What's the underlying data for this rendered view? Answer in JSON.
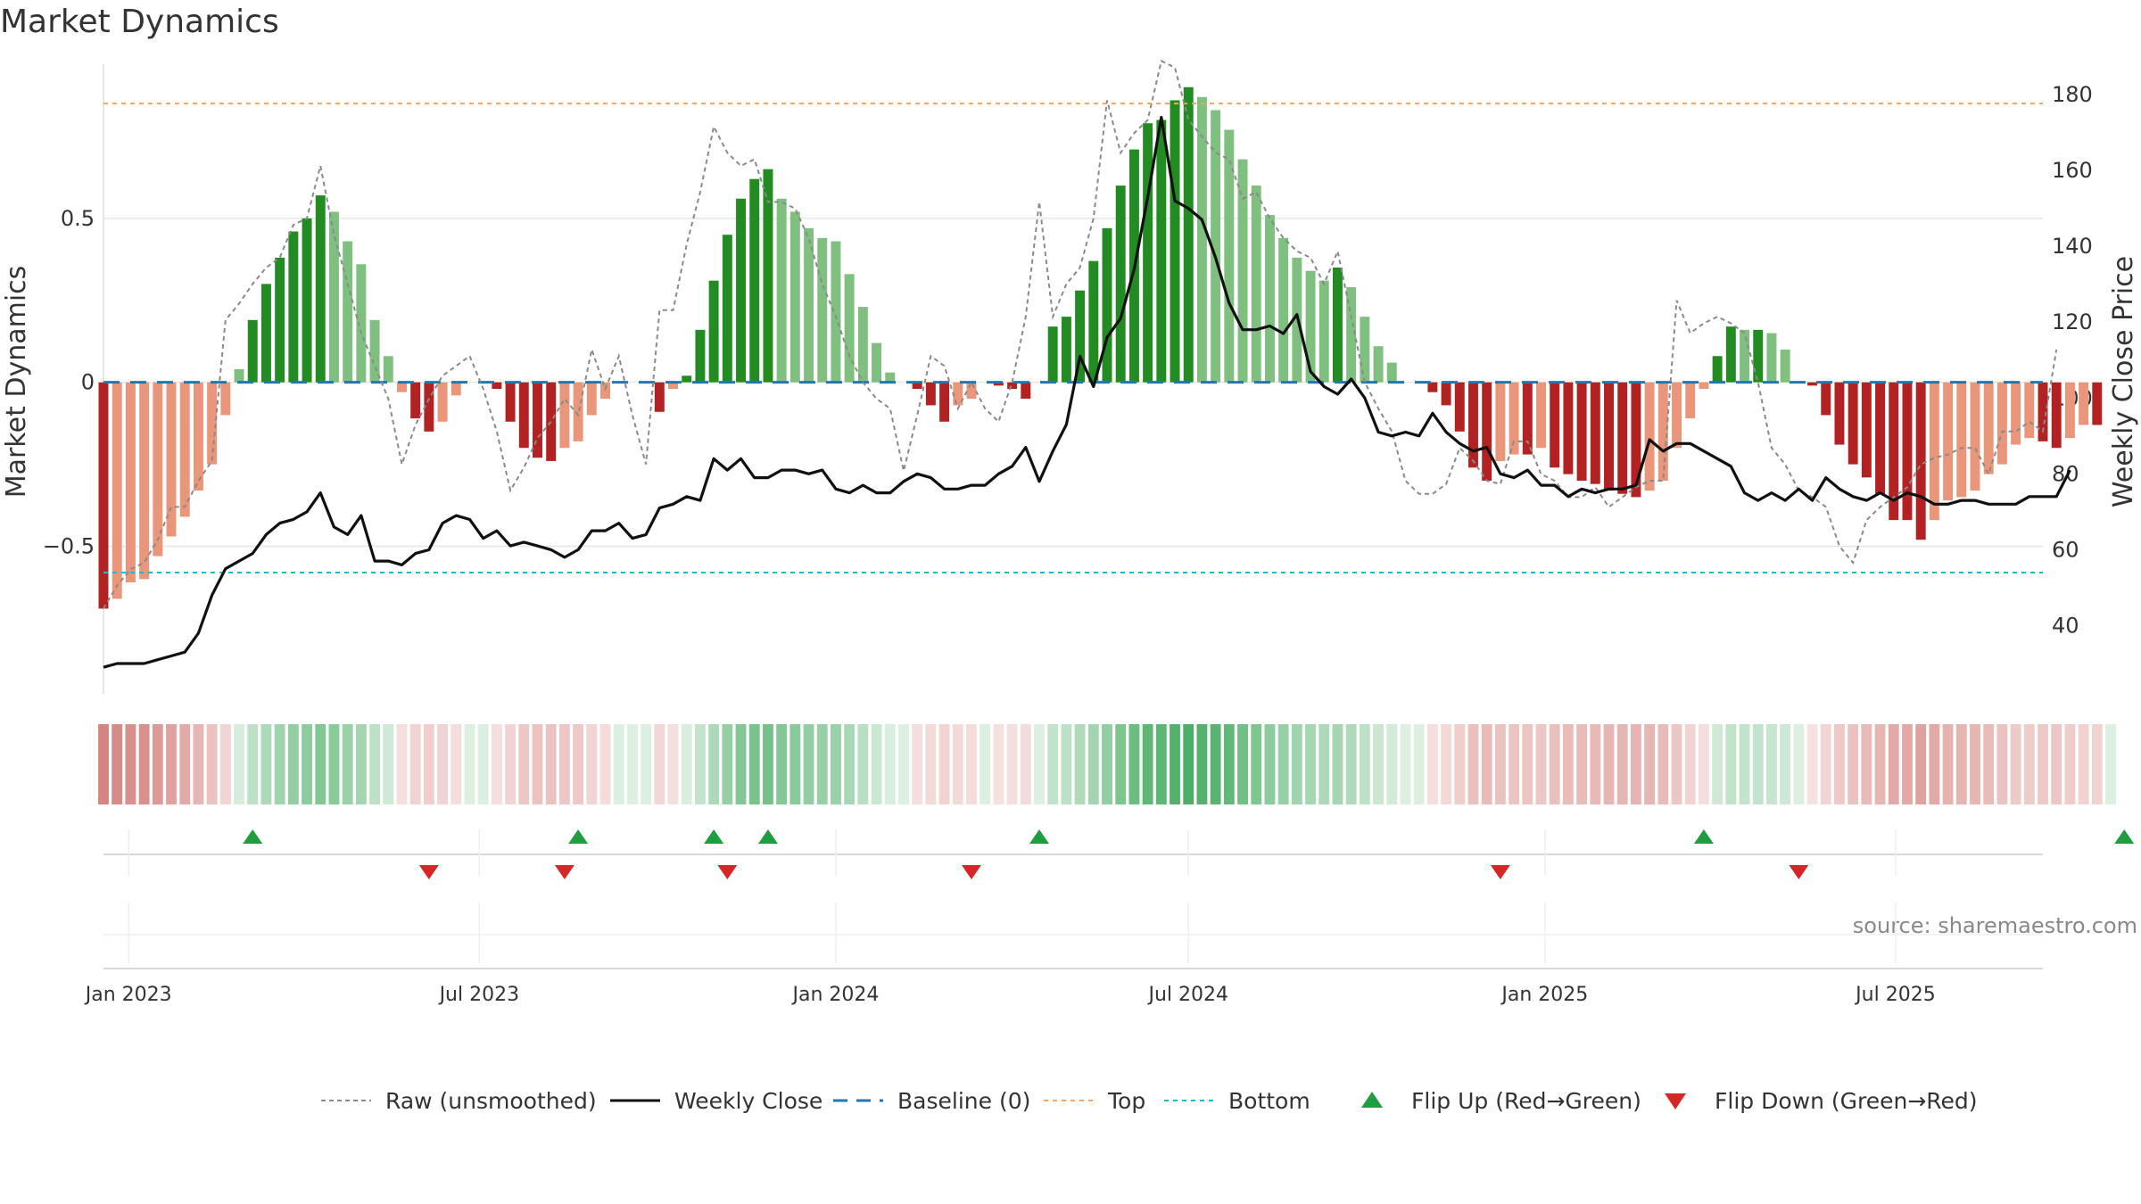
{
  "chart_data": {
    "type": "bar",
    "title": "Market Dynamics",
    "ylabel_left": "Market Dynamics",
    "ylabel_right": "Weekly Close Price",
    "left_ylim": [
      -0.95,
      0.97
    ],
    "right_ylim": [
      22,
      188
    ],
    "left_ticks": [
      {
        "value": 0.5,
        "label": "0.5"
      },
      {
        "value": 0,
        "label": "0"
      },
      {
        "value": -0.5,
        "label": "−0.5"
      }
    ],
    "right_ticks": [
      {
        "value": 180,
        "label": "180"
      },
      {
        "value": 160,
        "label": "160"
      },
      {
        "value": 140,
        "label": "140"
      },
      {
        "value": 120,
        "label": "120"
      },
      {
        "value": 100,
        "label": "100"
      },
      {
        "value": 80,
        "label": "80"
      },
      {
        "value": 60,
        "label": "60"
      },
      {
        "value": 40,
        "label": "40"
      }
    ],
    "x_range": [
      "2022-12-19",
      "2025-09-15"
    ],
    "x_ticks": [
      {
        "date": "2023-01-01",
        "label": "Jan 2023"
      },
      {
        "date": "2023-07-01",
        "label": "Jul 2023"
      },
      {
        "date": "2024-01-01",
        "label": "Jan 2024"
      },
      {
        "date": "2024-07-01",
        "label": "Jul 2024"
      },
      {
        "date": "2025-01-01",
        "label": "Jan 2025"
      },
      {
        "date": "2025-07-01",
        "label": "Jul 2025"
      }
    ],
    "first_week": "2022-12-19",
    "week_step_days": 7,
    "top_level": 0.85,
    "bottom_level": -0.58,
    "baseline_level": 0,
    "momentum": [
      -0.69,
      -0.66,
      -0.61,
      -0.6,
      -0.53,
      -0.47,
      -0.41,
      -0.33,
      -0.25,
      -0.1,
      0.04,
      0.19,
      0.3,
      0.38,
      0.46,
      0.5,
      0.57,
      0.52,
      0.43,
      0.36,
      0.19,
      0.08,
      -0.03,
      -0.11,
      -0.15,
      -0.12,
      -0.04,
      0.0,
      0.0,
      -0.02,
      -0.12,
      -0.2,
      -0.23,
      -0.24,
      -0.2,
      -0.18,
      -0.1,
      -0.05,
      0.0,
      0.0,
      0.0,
      -0.09,
      -0.02,
      0.02,
      0.16,
      0.31,
      0.45,
      0.56,
      0.62,
      0.65,
      0.56,
      0.52,
      0.47,
      0.44,
      0.43,
      0.33,
      0.23,
      0.12,
      0.03,
      0.0,
      -0.02,
      -0.07,
      -0.12,
      -0.07,
      -0.05,
      0.0,
      -0.01,
      -0.02,
      -0.05,
      0.0,
      0.17,
      0.2,
      0.28,
      0.37,
      0.47,
      0.6,
      0.71,
      0.79,
      0.8,
      0.86,
      0.9,
      0.87,
      0.83,
      0.77,
      0.68,
      0.6,
      0.51,
      0.44,
      0.38,
      0.34,
      0.31,
      0.35,
      0.29,
      0.2,
      0.11,
      0.06,
      0.0,
      0.0,
      -0.03,
      -0.07,
      -0.15,
      -0.26,
      -0.3,
      -0.24,
      -0.22,
      -0.22,
      -0.2,
      -0.26,
      -0.28,
      -0.3,
      -0.31,
      -0.33,
      -0.34,
      -0.35,
      -0.33,
      -0.3,
      -0.2,
      -0.11,
      -0.02,
      0.08,
      0.17,
      0.16,
      0.16,
      0.15,
      0.1,
      0.0,
      -0.01,
      -0.1,
      -0.19,
      -0.25,
      -0.29,
      -0.34,
      -0.42,
      -0.42,
      -0.48,
      -0.42,
      -0.36,
      -0.35,
      -0.33,
      -0.28,
      -0.25,
      -0.19,
      -0.17,
      -0.18,
      -0.2,
      -0.17,
      -0.13,
      -0.13,
      0.0
    ],
    "raw": [
      -0.69,
      -0.62,
      -0.57,
      -0.55,
      -0.48,
      -0.38,
      -0.38,
      -0.3,
      -0.24,
      0.19,
      0.24,
      0.3,
      0.35,
      0.38,
      0.48,
      0.5,
      0.66,
      0.45,
      0.3,
      0.15,
      0.05,
      -0.05,
      -0.25,
      -0.13,
      -0.05,
      0.02,
      0.05,
      0.08,
      -0.02,
      -0.15,
      -0.33,
      -0.26,
      -0.17,
      -0.12,
      -0.05,
      -0.1,
      0.1,
      -0.02,
      0.08,
      -0.1,
      -0.25,
      0.22,
      0.22,
      0.42,
      0.58,
      0.78,
      0.7,
      0.66,
      0.68,
      0.55,
      0.55,
      0.53,
      0.44,
      0.3,
      0.2,
      0.08,
      0.0,
      -0.05,
      -0.08,
      -0.27,
      -0.1,
      0.08,
      0.05,
      -0.08,
      0.0,
      -0.08,
      -0.12,
      0.0,
      0.2,
      0.55,
      0.2,
      0.3,
      0.35,
      0.5,
      0.86,
      0.7,
      0.76,
      0.8,
      0.98,
      0.96,
      0.8,
      0.75,
      0.7,
      0.68,
      0.56,
      0.58,
      0.5,
      0.44,
      0.4,
      0.38,
      0.3,
      0.4,
      0.2,
      0.0,
      -0.08,
      -0.15,
      -0.3,
      -0.34,
      -0.34,
      -0.31,
      -0.2,
      -0.24,
      -0.3,
      -0.31,
      -0.18,
      -0.18,
      -0.28,
      -0.3,
      -0.35,
      -0.35,
      -0.32,
      -0.38,
      -0.35,
      -0.32,
      -0.3,
      -0.3,
      0.25,
      0.15,
      0.18,
      0.2,
      0.18,
      0.15,
      0.0,
      -0.2,
      -0.25,
      -0.33,
      -0.35,
      -0.38,
      -0.5,
      -0.55,
      -0.42,
      -0.38,
      -0.35,
      -0.32,
      -0.25,
      -0.23,
      -0.22,
      -0.2,
      -0.2,
      -0.28,
      -0.15,
      -0.15,
      -0.12,
      -0.15,
      0.1
    ],
    "price": [
      29,
      30,
      30,
      30,
      31,
      32,
      33,
      38,
      48,
      55,
      57,
      59,
      64,
      67,
      68,
      70,
      75,
      66,
      64,
      69,
      57,
      57,
      56,
      59,
      60,
      67,
      69,
      68,
      63,
      65,
      61,
      62,
      61,
      60,
      58,
      60,
      65,
      65,
      67,
      63,
      64,
      71,
      72,
      74,
      73,
      84,
      81,
      84,
      79,
      79,
      81,
      81,
      80,
      81,
      76,
      75,
      77,
      75,
      75,
      78,
      80,
      79,
      76,
      76,
      77,
      77,
      80,
      82,
      87,
      78,
      86,
      93,
      111,
      103,
      116,
      121,
      134,
      153,
      174,
      152,
      150,
      147,
      137,
      125,
      118,
      118,
      119,
      117,
      122,
      107,
      103,
      101,
      105,
      100,
      91,
      90,
      91,
      90,
      96,
      91,
      88,
      86,
      87,
      80,
      79,
      81,
      77,
      77,
      74,
      76,
      75,
      76,
      76,
      77,
      89,
      86,
      88,
      88,
      86,
      84,
      82,
      75,
      73,
      75,
      73,
      76,
      73,
      79,
      76,
      74,
      73,
      75,
      73,
      75,
      74,
      72,
      72,
      73,
      73,
      72,
      72,
      72,
      74,
      74,
      74,
      81
    ],
    "flip_up_weeks": [
      11,
      35,
      45,
      49,
      69,
      118,
      149
    ],
    "flip_down_weeks": [
      24,
      34,
      46,
      64,
      103,
      125
    ],
    "source_text": "source: sharemaestro.com",
    "legend": [
      {
        "key": "raw",
        "label": "Raw (unsmoothed)"
      },
      {
        "key": "price",
        "label": "Weekly Close"
      },
      {
        "key": "baseline",
        "label": "Baseline (0)"
      },
      {
        "key": "top",
        "label": "Top"
      },
      {
        "key": "bottom",
        "label": "Bottom"
      },
      {
        "key": "flip_up",
        "label": "Flip Up (Red→Green)"
      },
      {
        "key": "flip_down",
        "label": "Flip Down (Green→Red)"
      }
    ],
    "colors": {
      "green_strong": "#228b22",
      "green_light": "#7fbf7f",
      "red_strong": "#b22222",
      "red_light": "#e9967a",
      "price_line": "#111111",
      "raw_line": "#8a8a8a",
      "baseline": "#1f77b4",
      "top": "#f4a460",
      "bottom": "#17becf",
      "flip_up": "#1e9e3e",
      "flip_down": "#d62728",
      "grid": "#e6e6e6"
    }
  }
}
